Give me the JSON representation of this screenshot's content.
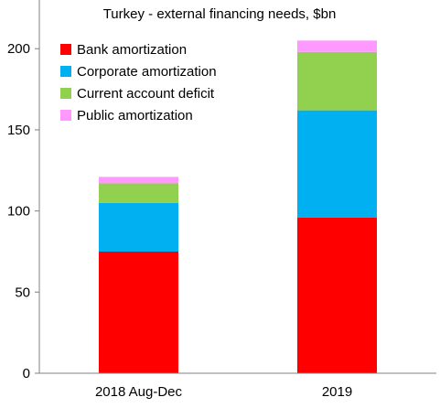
{
  "chart_data": {
    "type": "bar",
    "stacked": true,
    "title": "Turkey - external financing needs, $bn",
    "categories": [
      "2018 Aug-Dec",
      "2019"
    ],
    "series": [
      {
        "name": "Bank amortization",
        "color": "#ff0000",
        "values": [
          75,
          96
        ]
      },
      {
        "name": "Corporate amortization",
        "color": "#00b0f0",
        "values": [
          30,
          66
        ]
      },
      {
        "name": "Current account deficit",
        "color": "#92d050",
        "values": [
          12,
          36
        ]
      },
      {
        "name": "Public amortization",
        "color": "#ff99ff",
        "values": [
          4,
          7
        ]
      }
    ],
    "xlabel": "",
    "ylabel": "",
    "ylim": [
      0,
      230
    ],
    "yticks": [
      0,
      50,
      100,
      150,
      200
    ],
    "grid": false,
    "legend_position": "top-left"
  }
}
